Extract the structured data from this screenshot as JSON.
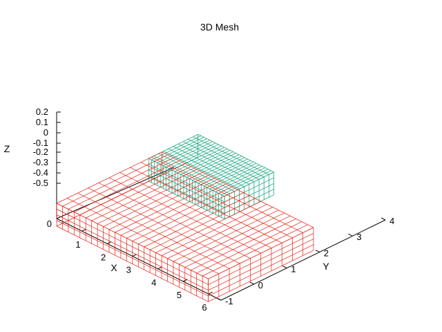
{
  "chart_data": {
    "type": "surface",
    "title": "3D Mesh",
    "xlabel": "X",
    "ylabel": "Y",
    "zlabel": "Z",
    "x_ticks": [
      "0",
      "1",
      "2",
      "3",
      "4",
      "5",
      "6"
    ],
    "y_ticks": [
      "-1",
      "0",
      "1",
      "2",
      "3",
      "4"
    ],
    "z_ticks": [
      "0.2",
      "0.1",
      "0",
      "-0.1",
      "-0.2",
      "-0.3",
      "-0.4",
      "-0.5"
    ],
    "xlim": [
      0,
      6.5
    ],
    "ylim": [
      -1,
      4
    ],
    "zlim": [
      -0.6,
      0.2
    ],
    "grid": false,
    "legend": "none",
    "series": [
      {
        "style": "wireframe mesh",
        "color": "#009e73",
        "x_range": [
          0,
          3.0
        ],
        "y_range": [
          1.8,
          3.3
        ],
        "z_range": [
          -0.1,
          0.2
        ]
      },
      {
        "style": "wireframe mesh",
        "color": "#e51e10",
        "x_range": [
          0,
          6.0
        ],
        "y_range": [
          -1.0,
          2.2
        ],
        "z_range": [
          -0.1,
          0.2
        ]
      }
    ]
  }
}
